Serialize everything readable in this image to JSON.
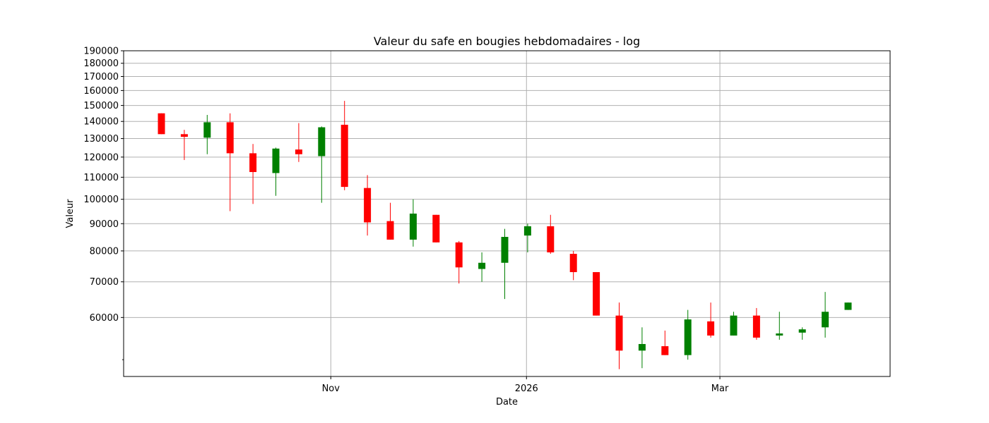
{
  "chart_data": {
    "type": "candlestick",
    "title": "Valeur du safe en bougies hebdomadaires - log",
    "xlabel": "Date",
    "ylabel": "Valeur",
    "y_scale": "log",
    "ylim": [
      46500,
      190000
    ],
    "y_ticks": [
      60000,
      70000,
      80000,
      90000,
      100000,
      110000,
      120000,
      130000,
      140000,
      150000,
      160000,
      170000,
      180000,
      190000
    ],
    "y_tick_labels": [
      "60000",
      "70000",
      "80000",
      "90000",
      "100000",
      "110000",
      "120000",
      "130000",
      "140000",
      "150000",
      "160000",
      "170000",
      "180000",
      "190000"
    ],
    "x_ticks": [
      "Nov",
      "2026",
      "Mar"
    ],
    "grid": true,
    "colors": {
      "up": "#008000",
      "down": "#ff0000",
      "grid": "#b0b0b0"
    },
    "candles": [
      {
        "open": 145000,
        "high": 145000,
        "low": 132500,
        "close": 132500
      },
      {
        "open": 132500,
        "high": 135000,
        "low": 118500,
        "close": 131000
      },
      {
        "open": 130500,
        "high": 144000,
        "low": 121500,
        "close": 139500
      },
      {
        "open": 139500,
        "high": 145000,
        "low": 95000,
        "close": 122000
      },
      {
        "open": 122000,
        "high": 127000,
        "low": 98000,
        "close": 112500
      },
      {
        "open": 112000,
        "high": 125000,
        "low": 101500,
        "close": 124500
      },
      {
        "open": 124000,
        "high": 139000,
        "low": 117500,
        "close": 121500
      },
      {
        "open": 120500,
        "high": 137000,
        "low": 98500,
        "close": 136500
      },
      {
        "open": 138000,
        "high": 153000,
        "low": 104000,
        "close": 105500
      },
      {
        "open": 105000,
        "high": 111000,
        "low": 85500,
        "close": 90500
      },
      {
        "open": 91000,
        "high": 98500,
        "low": 84000,
        "close": 84000
      },
      {
        "open": 84000,
        "high": 100000,
        "low": 81500,
        "close": 94000
      },
      {
        "open": 93500,
        "high": 93500,
        "low": 83000,
        "close": 83000
      },
      {
        "open": 83000,
        "high": 83500,
        "low": 69500,
        "close": 74500
      },
      {
        "open": 74000,
        "high": 79500,
        "low": 70000,
        "close": 76000
      },
      {
        "open": 76000,
        "high": 88000,
        "low": 65000,
        "close": 85000
      },
      {
        "open": 85500,
        "high": 90000,
        "low": 79500,
        "close": 89000
      },
      {
        "open": 89000,
        "high": 93500,
        "low": 79000,
        "close": 79500
      },
      {
        "open": 79000,
        "high": 80000,
        "low": 70500,
        "close": 73000
      },
      {
        "open": 73000,
        "high": 73000,
        "low": 60500,
        "close": 60500
      },
      {
        "open": 60500,
        "high": 64000,
        "low": 48000,
        "close": 52000
      },
      {
        "open": 52000,
        "high": 57500,
        "low": 48200,
        "close": 53500
      },
      {
        "open": 53000,
        "high": 56700,
        "low": 51000,
        "close": 51000
      },
      {
        "open": 51000,
        "high": 62000,
        "low": 50000,
        "close": 59500
      },
      {
        "open": 59000,
        "high": 64000,
        "low": 55000,
        "close": 55500
      },
      {
        "open": 55500,
        "high": 61500,
        "low": 55500,
        "close": 60500
      },
      {
        "open": 60500,
        "high": 62500,
        "low": 54500,
        "close": 55000
      },
      {
        "open": 55500,
        "high": 61500,
        "low": 54500,
        "close": 56000
      },
      {
        "open": 56200,
        "high": 57500,
        "low": 54500,
        "close": 57000
      },
      {
        "open": 57500,
        "high": 67000,
        "low": 55000,
        "close": 61500
      },
      {
        "open": 62000,
        "high": 64000,
        "low": 62000,
        "close": 64000
      }
    ]
  }
}
